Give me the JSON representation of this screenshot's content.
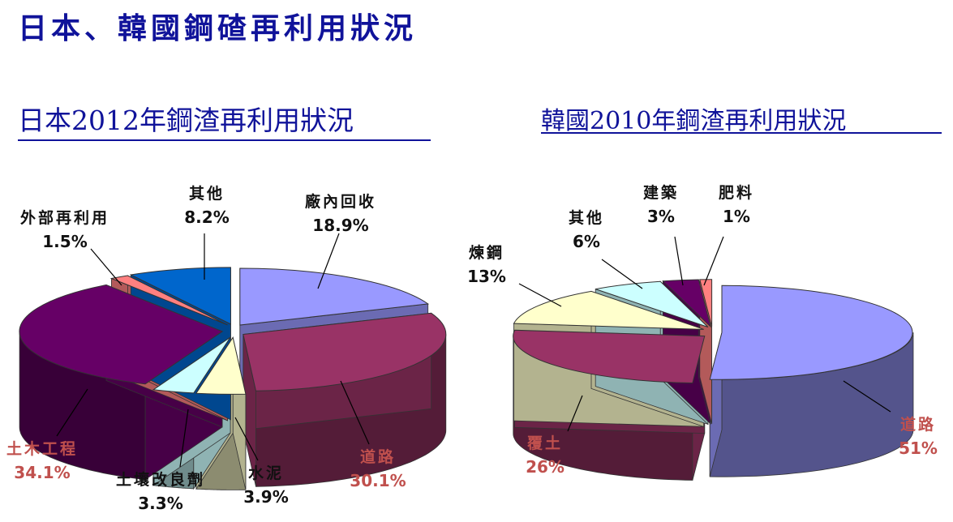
{
  "page_title": "日本、韓國鋼碴再利用狀況",
  "chart_data": [
    {
      "type": "pie",
      "title": "日本2012年鋼渣再利用狀況",
      "slices": [
        {
          "label": "廠內回收",
          "value_label": "18.9%",
          "value": 18.9,
          "color": "#9999ff",
          "label_color": "#111111"
        },
        {
          "label": "道路",
          "value_label": "30.1%",
          "value": 30.1,
          "color": "#993366",
          "label_color": "#c0504d"
        },
        {
          "label": "水泥",
          "value_label": "3.9%",
          "value": 3.9,
          "color": "#ffffcc",
          "label_color": "#111111"
        },
        {
          "label": "土壤改良劑",
          "value_label": "3.3%",
          "value": 3.3,
          "color": "#ccffff",
          "label_color": "#111111"
        },
        {
          "label": "土木工程",
          "value_label": "34.1%",
          "value": 34.1,
          "color": "#660066",
          "label_color": "#c0504d"
        },
        {
          "label": "外部再利用",
          "value_label": "1.5%",
          "value": 1.5,
          "color": "#ff8080",
          "label_color": "#111111"
        },
        {
          "label": "其他",
          "value_label": "8.2%",
          "value": 8.2,
          "color": "#0066cc",
          "label_color": "#111111"
        }
      ]
    },
    {
      "type": "pie",
      "title": "韓國2010年鋼渣再利用狀況",
      "slices": [
        {
          "label": "道路",
          "value_label": "51%",
          "value": 51,
          "color": "#9999ff",
          "label_color": "#c0504d"
        },
        {
          "label": "覆土",
          "value_label": "26%",
          "value": 26,
          "color": "#993366",
          "label_color": "#c0504d"
        },
        {
          "label": "煉鋼",
          "value_label": "13%",
          "value": 13,
          "color": "#ffffcc",
          "label_color": "#111111"
        },
        {
          "label": "其他",
          "value_label": "6%",
          "value": 6,
          "color": "#ccffff",
          "label_color": "#111111"
        },
        {
          "label": "建築",
          "value_label": "3%",
          "value": 3,
          "color": "#660066",
          "label_color": "#111111"
        },
        {
          "label": "肥料",
          "value_label": "1%",
          "value": 1,
          "color": "#ff8080",
          "label_color": "#111111"
        }
      ]
    }
  ]
}
